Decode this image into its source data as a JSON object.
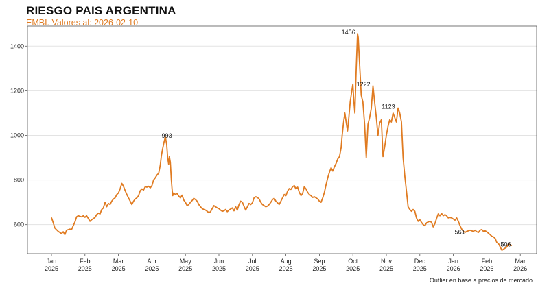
{
  "header": {
    "title": "RIESGO PAIS ARGENTINA",
    "subtitle": "EMBI. Valores al: 2026-02-10"
  },
  "footnote": "Outlier en base a precios de mercado",
  "colors": {
    "line": "#e07b21",
    "subtitle": "#e07b21",
    "grid": "#e3e3e3",
    "axis": "#555555"
  },
  "chart_data": {
    "type": "line",
    "title": "RIESGO PAIS ARGENTINA",
    "subtitle": "EMBI. Valores al: 2026-02-10",
    "xlabel": "",
    "ylabel": "",
    "xlim_months": [
      0,
      14
    ],
    "ylim": [
      470,
      1490
    ],
    "y_ticks": [
      600,
      800,
      1000,
      1200,
      1400
    ],
    "y_tick_labels": [
      "600",
      "800",
      "1000",
      "1200",
      "1400"
    ],
    "x_ticks": [
      {
        "m": 0,
        "label": "Jan",
        "year": "2025"
      },
      {
        "m": 1,
        "label": "Feb",
        "year": "2025"
      },
      {
        "m": 2,
        "label": "Mar",
        "year": "2025"
      },
      {
        "m": 3,
        "label": "Apr",
        "year": "2025"
      },
      {
        "m": 4,
        "label": "May",
        "year": "2025"
      },
      {
        "m": 5,
        "label": "Jun",
        "year": "2025"
      },
      {
        "m": 6,
        "label": "Jul",
        "year": "2025"
      },
      {
        "m": 7,
        "label": "Aug",
        "year": "2025"
      },
      {
        "m": 8,
        "label": "Sep",
        "year": "2025"
      },
      {
        "m": 9,
        "label": "Oct",
        "year": "2025"
      },
      {
        "m": 10,
        "label": "Nov",
        "year": "2025"
      },
      {
        "m": 11,
        "label": "Dec",
        "year": "2025"
      },
      {
        "m": 12,
        "label": "Jan",
        "year": "2026"
      },
      {
        "m": 13,
        "label": "Feb",
        "year": "2026"
      },
      {
        "m": 14,
        "label": "Mar",
        "year": "2026"
      }
    ],
    "annotations": [
      {
        "label": "993",
        "m": 3.23,
        "y": 993
      },
      {
        "label": "1456",
        "m": 8.6,
        "y": 1456
      },
      {
        "label": "1222",
        "m": 9.05,
        "y": 1222
      },
      {
        "label": "1123",
        "m": 9.8,
        "y": 1123
      },
      {
        "label": "561",
        "m": 11.98,
        "y": 561
      },
      {
        "label": "506",
        "m": 13.35,
        "y": 506
      }
    ],
    "series": [
      {
        "name": "EMBI Argentina",
        "points": [
          [
            0.0,
            632
          ],
          [
            0.05,
            610
          ],
          [
            0.1,
            585
          ],
          [
            0.2,
            570
          ],
          [
            0.3,
            560
          ],
          [
            0.35,
            568
          ],
          [
            0.4,
            555
          ],
          [
            0.45,
            575
          ],
          [
            0.55,
            580
          ],
          [
            0.6,
            578
          ],
          [
            0.7,
            612
          ],
          [
            0.75,
            635
          ],
          [
            0.8,
            640
          ],
          [
            0.9,
            635
          ],
          [
            0.95,
            640
          ],
          [
            1.0,
            633
          ],
          [
            1.05,
            640
          ],
          [
            1.1,
            628
          ],
          [
            1.15,
            615
          ],
          [
            1.2,
            622
          ],
          [
            1.3,
            632
          ],
          [
            1.35,
            645
          ],
          [
            1.4,
            652
          ],
          [
            1.45,
            648
          ],
          [
            1.5,
            668
          ],
          [
            1.55,
            675
          ],
          [
            1.6,
            700
          ],
          [
            1.65,
            680
          ],
          [
            1.7,
            695
          ],
          [
            1.75,
            690
          ],
          [
            1.8,
            705
          ],
          [
            1.85,
            715
          ],
          [
            1.9,
            720
          ],
          [
            1.95,
            735
          ],
          [
            2.0,
            742
          ],
          [
            2.05,
            760
          ],
          [
            2.1,
            785
          ],
          [
            2.15,
            772
          ],
          [
            2.2,
            752
          ],
          [
            2.25,
            735
          ],
          [
            2.3,
            720
          ],
          [
            2.35,
            705
          ],
          [
            2.4,
            690
          ],
          [
            2.45,
            705
          ],
          [
            2.5,
            715
          ],
          [
            2.55,
            720
          ],
          [
            2.6,
            730
          ],
          [
            2.65,
            752
          ],
          [
            2.7,
            760
          ],
          [
            2.75,
            755
          ],
          [
            2.8,
            770
          ],
          [
            2.85,
            768
          ],
          [
            2.9,
            772
          ],
          [
            2.95,
            765
          ],
          [
            3.0,
            775
          ],
          [
            3.05,
            800
          ],
          [
            3.1,
            810
          ],
          [
            3.15,
            822
          ],
          [
            3.2,
            830
          ],
          [
            3.25,
            868
          ],
          [
            3.28,
            908
          ],
          [
            3.32,
            940
          ],
          [
            3.36,
            970
          ],
          [
            3.4,
            993
          ],
          [
            3.44,
            960
          ],
          [
            3.47,
            900
          ],
          [
            3.5,
            870
          ],
          [
            3.52,
            905
          ],
          [
            3.55,
            880
          ],
          [
            3.58,
            800
          ],
          [
            3.6,
            760
          ],
          [
            3.62,
            730
          ],
          [
            3.65,
            742
          ],
          [
            3.7,
            735
          ],
          [
            3.75,
            740
          ],
          [
            3.8,
            728
          ],
          [
            3.85,
            720
          ],
          [
            3.9,
            732
          ],
          [
            3.95,
            710
          ],
          [
            4.0,
            700
          ],
          [
            4.05,
            685
          ],
          [
            4.1,
            690
          ],
          [
            4.15,
            700
          ],
          [
            4.2,
            708
          ],
          [
            4.25,
            718
          ],
          [
            4.3,
            712
          ],
          [
            4.35,
            705
          ],
          [
            4.4,
            690
          ],
          [
            4.45,
            680
          ],
          [
            4.5,
            672
          ],
          [
            4.55,
            668
          ],
          [
            4.6,
            665
          ],
          [
            4.65,
            660
          ],
          [
            4.7,
            653
          ],
          [
            4.75,
            658
          ],
          [
            4.8,
            672
          ],
          [
            4.85,
            685
          ],
          [
            4.9,
            680
          ],
          [
            4.95,
            675
          ],
          [
            5.0,
            672
          ],
          [
            5.05,
            665
          ],
          [
            5.1,
            660
          ],
          [
            5.15,
            662
          ],
          [
            5.2,
            668
          ],
          [
            5.25,
            658
          ],
          [
            5.3,
            665
          ],
          [
            5.35,
            670
          ],
          [
            5.4,
            675
          ],
          [
            5.45,
            662
          ],
          [
            5.5,
            680
          ],
          [
            5.55,
            665
          ],
          [
            5.6,
            690
          ],
          [
            5.65,
            705
          ],
          [
            5.7,
            700
          ],
          [
            5.75,
            682
          ],
          [
            5.8,
            665
          ],
          [
            5.85,
            680
          ],
          [
            5.9,
            695
          ],
          [
            5.95,
            690
          ],
          [
            6.0,
            698
          ],
          [
            6.05,
            720
          ],
          [
            6.1,
            725
          ],
          [
            6.15,
            722
          ],
          [
            6.2,
            715
          ],
          [
            6.25,
            700
          ],
          [
            6.3,
            690
          ],
          [
            6.35,
            685
          ],
          [
            6.4,
            680
          ],
          [
            6.45,
            683
          ],
          [
            6.5,
            690
          ],
          [
            6.55,
            700
          ],
          [
            6.6,
            712
          ],
          [
            6.65,
            718
          ],
          [
            6.7,
            705
          ],
          [
            6.75,
            698
          ],
          [
            6.8,
            690
          ],
          [
            6.85,
            705
          ],
          [
            6.9,
            720
          ],
          [
            6.95,
            735
          ],
          [
            7.0,
            730
          ],
          [
            7.05,
            750
          ],
          [
            7.1,
            762
          ],
          [
            7.15,
            758
          ],
          [
            7.2,
            770
          ],
          [
            7.25,
            775
          ],
          [
            7.3,
            760
          ],
          [
            7.35,
            768
          ],
          [
            7.4,
            745
          ],
          [
            7.45,
            730
          ],
          [
            7.5,
            740
          ],
          [
            7.55,
            770
          ],
          [
            7.6,
            760
          ],
          [
            7.65,
            745
          ],
          [
            7.7,
            735
          ],
          [
            7.75,
            730
          ],
          [
            7.8,
            722
          ],
          [
            7.85,
            725
          ],
          [
            7.9,
            720
          ],
          [
            7.95,
            715
          ],
          [
            8.0,
            705
          ],
          [
            8.05,
            700
          ],
          [
            8.1,
            720
          ],
          [
            8.15,
            745
          ],
          [
            8.2,
            780
          ],
          [
            8.25,
            810
          ],
          [
            8.3,
            835
          ],
          [
            8.35,
            855
          ],
          [
            8.4,
            840
          ],
          [
            8.45,
            860
          ],
          [
            8.5,
            875
          ],
          [
            8.55,
            895
          ],
          [
            8.6,
            905
          ],
          [
            8.65,
            945
          ],
          [
            8.68,
            1000
          ],
          [
            8.72,
            1055
          ],
          [
            8.76,
            1100
          ],
          [
            8.8,
            1060
          ],
          [
            8.84,
            1020
          ],
          [
            8.88,
            1080
          ],
          [
            8.92,
            1150
          ],
          [
            8.96,
            1190
          ],
          [
            9.0,
            1230
          ],
          [
            9.03,
            1150
          ],
          [
            9.06,
            1100
          ],
          [
            9.1,
            1300
          ],
          [
            9.14,
            1456
          ],
          [
            9.16,
            1440
          ],
          [
            9.2,
            1320
          ],
          [
            9.25,
            1180
          ],
          [
            9.3,
            1150
          ],
          [
            9.35,
            1050
          ],
          [
            9.4,
            900
          ],
          [
            9.45,
            1050
          ],
          [
            9.5,
            1080
          ],
          [
            9.55,
            1120
          ],
          [
            9.6,
            1222
          ],
          [
            9.65,
            1150
          ],
          [
            9.7,
            1080
          ],
          [
            9.75,
            1000
          ],
          [
            9.8,
            1055
          ],
          [
            9.85,
            1070
          ],
          [
            9.9,
            905
          ],
          [
            9.95,
            950
          ],
          [
            10.0,
            1000
          ],
          [
            10.05,
            1040
          ],
          [
            10.1,
            1070
          ],
          [
            10.15,
            1060
          ],
          [
            10.2,
            1100
          ],
          [
            10.25,
            1080
          ],
          [
            10.3,
            1060
          ],
          [
            10.35,
            1123
          ],
          [
            10.4,
            1100
          ],
          [
            10.45,
            1060
          ],
          [
            10.5,
            900
          ],
          [
            10.55,
            820
          ],
          [
            10.6,
            750
          ],
          [
            10.65,
            680
          ],
          [
            10.7,
            668
          ],
          [
            10.75,
            660
          ],
          [
            10.8,
            668
          ],
          [
            10.85,
            660
          ],
          [
            10.9,
            630
          ],
          [
            10.95,
            615
          ],
          [
            11.0,
            622
          ],
          [
            11.05,
            610
          ],
          [
            11.1,
            600
          ],
          [
            11.15,
            595
          ],
          [
            11.2,
            608
          ],
          [
            11.25,
            612
          ],
          [
            11.3,
            615
          ],
          [
            11.35,
            610
          ],
          [
            11.4,
            590
          ],
          [
            11.45,
            605
          ],
          [
            11.5,
            628
          ],
          [
            11.55,
            648
          ],
          [
            11.6,
            640
          ],
          [
            11.65,
            650
          ],
          [
            11.7,
            640
          ],
          [
            11.75,
            645
          ],
          [
            11.8,
            640
          ],
          [
            11.85,
            630
          ],
          [
            11.9,
            632
          ],
          [
            11.95,
            630
          ],
          [
            12.0,
            625
          ],
          [
            12.05,
            620
          ],
          [
            12.1,
            630
          ],
          [
            12.15,
            615
          ],
          [
            12.2,
            595
          ],
          [
            12.25,
            580
          ],
          [
            12.3,
            570
          ],
          [
            12.35,
            565
          ],
          [
            12.4,
            570
          ],
          [
            12.45,
            572
          ],
          [
            12.5,
            575
          ],
          [
            12.55,
            572
          ],
          [
            12.6,
            570
          ],
          [
            12.65,
            575
          ],
          [
            12.7,
            568
          ],
          [
            12.75,
            565
          ],
          [
            12.8,
            575
          ],
          [
            12.85,
            578
          ],
          [
            12.9,
            570
          ],
          [
            12.95,
            572
          ],
          [
            13.0,
            568
          ],
          [
            13.05,
            561
          ],
          [
            13.1,
            555
          ],
          [
            13.15,
            548
          ],
          [
            13.2,
            545
          ],
          [
            13.25,
            538
          ],
          [
            13.3,
            520
          ],
          [
            13.35,
            515
          ],
          [
            13.4,
            500
          ],
          [
            13.45,
            485
          ],
          [
            13.5,
            490
          ],
          [
            13.55,
            495
          ],
          [
            13.6,
            500
          ],
          [
            13.65,
            515
          ],
          [
            13.7,
            510
          ],
          [
            13.75,
            506
          ]
        ]
      }
    ]
  }
}
